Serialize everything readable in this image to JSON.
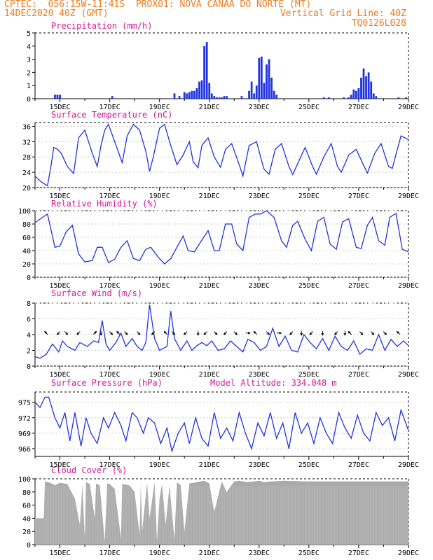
{
  "header": {
    "line1": "CPTEC:  056:15W-11:41S  PROX01: NOVA CANAA DO NORTE (MT)",
    "line2": "14DEC2020 40Z (GMT)",
    "vgrid": "Vertical Grid Line: 40Z",
    "code": "TQ0126L028"
  },
  "x_tick_labels": [
    "15DEC",
    "17DEC",
    "19DEC",
    "21DEC",
    "23DEC",
    "25DEC",
    "27DEC",
    "29DEC"
  ],
  "chart_data": [
    {
      "type": "bar",
      "title": "Precipitation (mm/h)",
      "ylim": [
        0,
        5
      ],
      "y_ticks": [
        "0",
        "1",
        "2",
        "3",
        "4",
        "5"
      ],
      "color": "#1f33e0",
      "x_unit": "days since 14DEC 00Z",
      "x": [
        0.8,
        0.9,
        1.0,
        3.1,
        5.6,
        5.8,
        6.0,
        6.1,
        6.2,
        6.3,
        6.4,
        6.5,
        6.6,
        6.7,
        6.8,
        6.9,
        7.0,
        7.1,
        7.2,
        7.3,
        7.4,
        7.5,
        7.6,
        7.7,
        8.3,
        8.6,
        8.7,
        8.8,
        8.9,
        9.0,
        9.1,
        9.2,
        9.3,
        9.4,
        9.5,
        9.6,
        9.7,
        11.6,
        11.8,
        12.4,
        12.6,
        12.7,
        12.8,
        12.9,
        13.0,
        13.1,
        13.2,
        13.3,
        13.4,
        13.5,
        13.6,
        13.7,
        14.6,
        14.9
      ],
      "values": [
        0.3,
        0.3,
        0.3,
        0.2,
        0.4,
        0.2,
        0.5,
        0.4,
        0.5,
        0.6,
        0.6,
        0.8,
        1.3,
        1.4,
        4.0,
        4.3,
        1.2,
        0.4,
        0.2,
        0.1,
        0.1,
        0.1,
        0.2,
        0.2,
        0.2,
        0.6,
        1.3,
        0.4,
        1.0,
        3.1,
        3.2,
        1.2,
        2.6,
        3.0,
        1.6,
        0.6,
        0.3,
        0.1,
        0.1,
        0.1,
        0.1,
        0.3,
        0.7,
        0.6,
        0.8,
        1.6,
        2.3,
        1.7,
        2.0,
        1.3,
        0.4,
        0.2,
        0.1,
        0.1
      ]
    },
    {
      "type": "line",
      "title": "Surface Temperature (nC)",
      "ylim": [
        20,
        37
      ],
      "y_ticks": [
        "20",
        "24",
        "28",
        "32",
        "36"
      ],
      "color": "#1f33e0",
      "x_unit": "days since 14DEC 00Z",
      "x": [
        0,
        0.25,
        0.5,
        0.65,
        0.75,
        0.9,
        1.05,
        1.3,
        1.55,
        1.75,
        2.0,
        2.3,
        2.5,
        2.65,
        2.8,
        2.95,
        3.2,
        3.5,
        3.7,
        3.95,
        4.2,
        4.45,
        4.6,
        4.75,
        5.0,
        5.2,
        5.45,
        5.7,
        5.95,
        6.2,
        6.35,
        6.55,
        6.7,
        6.95,
        7.2,
        7.45,
        7.65,
        7.9,
        8.2,
        8.35,
        8.6,
        8.9,
        9.1,
        9.2,
        9.4,
        9.65,
        9.9,
        10.2,
        10.35,
        10.6,
        10.85,
        11.15,
        11.3,
        11.6,
        11.9,
        12.15,
        12.3,
        12.6,
        12.9,
        13.2,
        13.35,
        13.65,
        13.9,
        14.2,
        14.35,
        14.7,
        15.0
      ],
      "values": [
        23,
        21.5,
        20.5,
        26,
        30.5,
        30,
        29,
        25.5,
        23.7,
        33,
        35,
        29,
        25.5,
        31,
        35,
        36.5,
        32,
        26.5,
        33.5,
        36.5,
        35,
        29.5,
        24.2,
        28,
        35.5,
        36.5,
        31,
        26,
        28.5,
        32,
        26.8,
        25.2,
        31,
        33,
        28,
        25.3,
        30,
        31.5,
        26,
        23,
        31,
        32,
        27,
        24.8,
        23.5,
        30,
        31.5,
        25.5,
        23.4,
        27,
        30.5,
        25.5,
        23.5,
        28,
        31.5,
        25.5,
        24,
        28.5,
        30,
        25.8,
        23.8,
        29,
        31.5,
        25.5,
        25,
        33.5,
        32.5
      ]
    },
    {
      "type": "line",
      "title": "Relative Humidity (%)",
      "ylim": [
        0,
        100
      ],
      "y_ticks": [
        "0",
        "20",
        "40",
        "60",
        "80",
        "100"
      ],
      "color": "#1f33e0",
      "x_unit": "days since 14DEC 00Z",
      "x": [
        0,
        0.3,
        0.5,
        0.65,
        0.8,
        1.0,
        1.25,
        1.5,
        1.75,
        2.0,
        2.3,
        2.5,
        2.7,
        2.95,
        3.2,
        3.45,
        3.7,
        3.95,
        4.2,
        4.45,
        4.65,
        4.95,
        5.2,
        5.45,
        5.7,
        5.95,
        6.15,
        6.4,
        6.6,
        6.95,
        7.2,
        7.4,
        7.65,
        7.9,
        8.1,
        8.35,
        8.6,
        8.85,
        9.05,
        9.3,
        9.6,
        9.9,
        10.1,
        10.35,
        10.55,
        10.85,
        11.1,
        11.35,
        11.6,
        11.85,
        12.1,
        12.35,
        12.6,
        12.9,
        13.1,
        13.35,
        13.55,
        13.8,
        14.05,
        14.25,
        14.5,
        14.75,
        15.0
      ],
      "values": [
        82,
        90,
        95,
        70,
        45,
        47,
        68,
        78,
        35,
        23,
        25,
        45,
        45,
        22,
        27,
        45,
        55,
        28,
        25,
        42,
        45,
        30,
        20,
        28,
        45,
        62,
        40,
        38,
        50,
        70,
        40,
        40,
        80,
        80,
        50,
        40,
        90,
        95,
        95,
        100,
        90,
        55,
        45,
        78,
        84,
        57,
        40,
        84,
        90,
        50,
        42,
        83,
        88,
        45,
        43,
        78,
        90,
        55,
        48,
        90,
        96,
        42,
        38
      ]
    },
    {
      "type": "line",
      "title": "Surface Wind (m/s)",
      "ylim": [
        0,
        8
      ],
      "y_ticks": [
        "0",
        "2",
        "4",
        "6",
        "8"
      ],
      "color": "#1f33e0",
      "x_unit": "days since 14DEC 00Z",
      "x": [
        0,
        0.2,
        0.45,
        0.7,
        0.95,
        1.1,
        1.3,
        1.6,
        1.8,
        2.1,
        2.35,
        2.55,
        2.7,
        2.85,
        3.0,
        3.25,
        3.45,
        3.65,
        3.9,
        4.1,
        4.3,
        4.45,
        4.6,
        4.8,
        5.0,
        5.3,
        5.45,
        5.6,
        5.85,
        6.1,
        6.3,
        6.5,
        6.7,
        6.9,
        7.1,
        7.35,
        7.6,
        7.85,
        8.1,
        8.35,
        8.55,
        8.8,
        9.05,
        9.3,
        9.55,
        9.8,
        10.05,
        10.3,
        10.55,
        10.8,
        11.05,
        11.3,
        11.55,
        11.8,
        12.05,
        12.3,
        12.55,
        12.8,
        13.05,
        13.3,
        13.55,
        13.8,
        14.05,
        14.3,
        14.55,
        14.8,
        15.0
      ],
      "values": [
        1.2,
        1.0,
        1.5,
        2.8,
        1.8,
        3.2,
        2.5,
        2.0,
        3.0,
        2.5,
        3.2,
        3.0,
        5.8,
        2.8,
        2.0,
        3.0,
        4.2,
        2.5,
        3.5,
        2.5,
        2.0,
        3.0,
        7.8,
        3.5,
        2.0,
        2.5,
        7.0,
        3.5,
        2.0,
        3.2,
        2.0,
        2.6,
        3.0,
        2.6,
        3.2,
        2.0,
        2.2,
        3.2,
        2.5,
        1.8,
        3.4,
        3.0,
        2.0,
        2.5,
        4.8,
        2.5,
        3.8,
        2.0,
        1.8,
        4.0,
        3.0,
        2.2,
        3.5,
        2.0,
        3.8,
        2.5,
        2.0,
        3.2,
        1.5,
        2.2,
        2.0,
        4.0,
        2.0,
        3.4,
        2.5,
        3.2,
        2.6
      ]
    },
    {
      "type": "line",
      "title": "Surface Pressure (hPa)",
      "annotation": "Model Altitude: 334.048 m",
      "ylim": [
        964.5,
        977
      ],
      "y_ticks": [
        "966",
        "969",
        "972",
        "975"
      ],
      "color": "#1f33e0",
      "x_unit": "days since 14DEC 00Z",
      "x": [
        0,
        0.2,
        0.4,
        0.55,
        0.8,
        1.0,
        1.2,
        1.4,
        1.6,
        1.85,
        2.05,
        2.25,
        2.5,
        2.75,
        2.95,
        3.2,
        3.45,
        3.65,
        3.9,
        4.1,
        4.35,
        4.55,
        4.8,
        5.05,
        5.3,
        5.5,
        5.75,
        6.0,
        6.2,
        6.45,
        6.7,
        6.95,
        7.2,
        7.45,
        7.7,
        7.95,
        8.2,
        8.45,
        8.7,
        8.95,
        9.2,
        9.45,
        9.7,
        9.95,
        10.2,
        10.45,
        10.7,
        10.95,
        11.2,
        11.45,
        11.7,
        11.95,
        12.2,
        12.45,
        12.7,
        12.95,
        13.2,
        13.45,
        13.7,
        13.95,
        14.2,
        14.45,
        14.7,
        15.0
      ],
      "values": [
        975,
        974,
        976,
        976,
        972,
        970,
        973,
        967.5,
        973,
        966.5,
        972,
        969,
        967,
        972,
        970,
        973,
        970.5,
        967.5,
        973,
        972,
        969,
        972,
        971,
        967,
        970,
        965.5,
        969,
        971,
        967,
        972,
        968,
        966.5,
        973,
        968,
        970,
        967.5,
        973,
        969,
        966,
        971,
        968.5,
        973,
        968,
        971,
        966,
        973,
        969,
        971,
        967,
        972,
        969,
        967,
        973,
        970,
        968,
        972.5,
        969,
        967.5,
        973,
        970.5,
        972,
        967.5,
        973.5,
        969.5
      ]
    },
    {
      "type": "area",
      "title": "Cloud Cover (%)",
      "ylim": [
        0,
        100
      ],
      "y_ticks": [
        "0",
        "20",
        "40",
        "60",
        "80",
        "100"
      ],
      "color": "#aaaaaa",
      "x_unit": "days since 14DEC 00Z",
      "x": [
        0,
        0.35,
        0.4,
        0.6,
        0.8,
        1.0,
        1.3,
        1.6,
        1.8,
        1.9,
        2.0,
        2.05,
        2.2,
        2.4,
        2.45,
        2.6,
        2.8,
        2.9,
        3.0,
        3.2,
        3.45,
        3.5,
        3.8,
        4.0,
        4.2,
        4.25,
        4.3,
        4.5,
        4.6,
        4.8,
        4.9,
        5.0,
        5.1,
        5.25,
        5.4,
        5.6,
        5.7,
        5.85,
        6.0,
        6.2,
        6.5,
        6.8,
        7.0,
        7.2,
        7.5,
        7.7,
        8.0,
        8.2,
        8.5,
        8.8,
        9.0,
        9.2,
        9.5,
        10.0,
        11.0,
        12.0,
        13.0,
        14.0,
        15.0
      ],
      "values": [
        40,
        40,
        96,
        94,
        90,
        94,
        92,
        70,
        30,
        90,
        10,
        95,
        92,
        40,
        93,
        90,
        5,
        93,
        92,
        85,
        10,
        92,
        90,
        80,
        15,
        95,
        20,
        94,
        40,
        95,
        5,
        70,
        92,
        30,
        90,
        8,
        95,
        90,
        20,
        93,
        95,
        97,
        93,
        50,
        96,
        80,
        96,
        97,
        95,
        96,
        97,
        95,
        96,
        97,
        96,
        96,
        96,
        96,
        96
      ]
    }
  ],
  "wind_arrows": {
    "x_unit": "days since 14DEC 00Z",
    "arrows": [
      {
        "x": 0.45,
        "dir": "NW"
      },
      {
        "x": 0.95,
        "dir": "SW"
      },
      {
        "x": 1.25,
        "dir": "SE"
      },
      {
        "x": 1.75,
        "dir": "SW"
      },
      {
        "x": 2.4,
        "dir": "NE"
      },
      {
        "x": 2.65,
        "dir": "S"
      },
      {
        "x": 3.05,
        "dir": "SE"
      },
      {
        "x": 3.35,
        "dir": "NW"
      },
      {
        "x": 3.65,
        "dir": "SE"
      },
      {
        "x": 4.15,
        "dir": "SE"
      },
      {
        "x": 4.75,
        "dir": "SW"
      },
      {
        "x": 5.25,
        "dir": "NW"
      },
      {
        "x": 5.55,
        "dir": "SE"
      },
      {
        "x": 6.05,
        "dir": "SW"
      },
      {
        "x": 6.55,
        "dir": "S"
      },
      {
        "x": 6.85,
        "dir": "SW"
      },
      {
        "x": 7.25,
        "dir": "SE"
      },
      {
        "x": 7.65,
        "dir": "SW"
      },
      {
        "x": 8.05,
        "dir": "SE"
      },
      {
        "x": 8.55,
        "dir": "E"
      },
      {
        "x": 8.85,
        "dir": "NW"
      },
      {
        "x": 9.35,
        "dir": "SE"
      },
      {
        "x": 9.8,
        "dir": "E"
      },
      {
        "x": 10.3,
        "dir": "SW"
      },
      {
        "x": 10.7,
        "dir": "S"
      },
      {
        "x": 11.1,
        "dir": "SW"
      },
      {
        "x": 11.55,
        "dir": "S"
      },
      {
        "x": 12.1,
        "dir": "SW"
      },
      {
        "x": 12.45,
        "dir": "S"
      },
      {
        "x": 12.65,
        "dir": "NW"
      },
      {
        "x": 13.1,
        "dir": "SE"
      },
      {
        "x": 13.55,
        "dir": "SE"
      },
      {
        "x": 14.05,
        "dir": "SE"
      },
      {
        "x": 14.6,
        "dir": "NW"
      }
    ]
  }
}
